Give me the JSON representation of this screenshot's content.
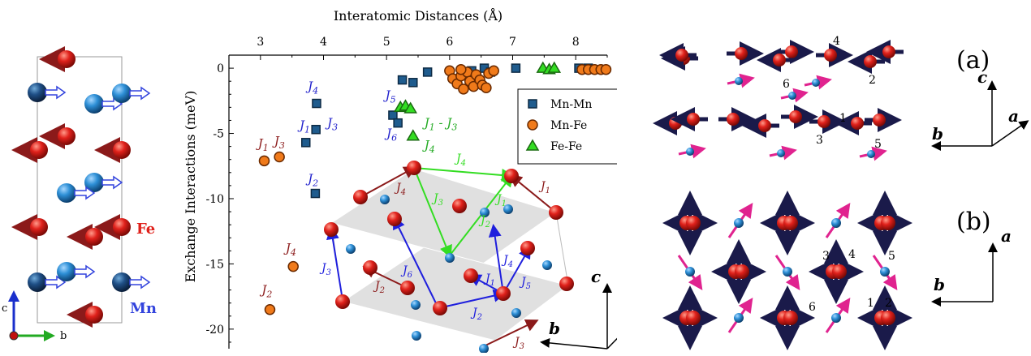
{
  "colors": {
    "fe": "#e0211b",
    "mn": "#1f4f86",
    "mn_light": "#2d8fd6",
    "mnmn_marker": "#1f5c8e",
    "mnfe_marker": "#f07a1a",
    "fefe_marker": "#33dd22",
    "arrow_blue": "#1f1fdd",
    "arrow_red": "#8b1a1a",
    "arrow_green": "#33dd22",
    "spin_dark": "#1a1a4a",
    "spin_pink": "#e0238f",
    "axis_c": "#1a2fcc",
    "axis_b": "#22aa22"
  },
  "left_panel": {
    "label_fe": "Fe",
    "label_mn": "Mn",
    "axis_c": "c",
    "axis_b": "b"
  },
  "chart_data": {
    "type": "scatter",
    "title": "",
    "xlabel_top": "Interatomic Distances (Å)",
    "ylabel": "Exchange Interactions (meV)",
    "xlim": [
      2.5,
      8.5
    ],
    "ylim": [
      -21.5,
      1
    ],
    "xticks": [
      3,
      4,
      5,
      6,
      7,
      8
    ],
    "yticks": [
      0,
      -5,
      -10,
      -15,
      -20
    ],
    "legend_position": "top-right",
    "series": [
      {
        "name": "Mn-Mn",
        "marker": "square",
        "points": [
          {
            "x": 3.72,
            "y": -5.7
          },
          {
            "x": 3.87,
            "y": -9.6
          },
          {
            "x": 3.88,
            "y": -4.7
          },
          {
            "x": 3.89,
            "y": -2.7
          },
          {
            "x": 5.1,
            "y": -3.6
          },
          {
            "x": 5.18,
            "y": -4.2
          },
          {
            "x": 5.25,
            "y": -0.9
          },
          {
            "x": 5.42,
            "y": -1.1
          },
          {
            "x": 5.65,
            "y": -0.3
          },
          {
            "x": 6.35,
            "y": -0.2
          },
          {
            "x": 6.55,
            "y": 0.0
          },
          {
            "x": 6.65,
            "y": -0.3
          },
          {
            "x": 7.05,
            "y": 0.0
          },
          {
            "x": 8.05,
            "y": 0.0
          },
          {
            "x": 8.2,
            "y": 0.0
          }
        ]
      },
      {
        "name": "Mn-Fe",
        "marker": "circle",
        "points": [
          {
            "x": 3.06,
            "y": -7.1
          },
          {
            "x": 3.3,
            "y": -6.8
          },
          {
            "x": 3.15,
            "y": -18.5
          },
          {
            "x": 3.52,
            "y": -15.2
          },
          {
            "x": 6.0,
            "y": -0.2
          },
          {
            "x": 6.05,
            "y": -0.8
          },
          {
            "x": 6.12,
            "y": -1.2
          },
          {
            "x": 6.18,
            "y": -0.6
          },
          {
            "x": 6.22,
            "y": -1.6
          },
          {
            "x": 6.28,
            "y": -0.3
          },
          {
            "x": 6.32,
            "y": -1.0
          },
          {
            "x": 6.38,
            "y": -1.4
          },
          {
            "x": 6.42,
            "y": -0.5
          },
          {
            "x": 6.48,
            "y": -0.9
          },
          {
            "x": 6.52,
            "y": -1.3
          },
          {
            "x": 6.58,
            "y": -1.5
          },
          {
            "x": 6.62,
            "y": -0.4
          },
          {
            "x": 6.7,
            "y": -0.2
          },
          {
            "x": 6.18,
            "y": -0.1
          },
          {
            "x": 8.1,
            "y": -0.1
          },
          {
            "x": 8.2,
            "y": -0.1
          },
          {
            "x": 8.3,
            "y": -0.1
          },
          {
            "x": 8.4,
            "y": -0.1
          },
          {
            "x": 8.48,
            "y": -0.1
          }
        ]
      },
      {
        "name": "Fe-Fe",
        "marker": "triangle",
        "points": [
          {
            "x": 5.22,
            "y": -3.0
          },
          {
            "x": 5.3,
            "y": -2.9
          },
          {
            "x": 5.38,
            "y": -3.1
          },
          {
            "x": 5.42,
            "y": -5.2
          },
          {
            "x": 7.48,
            "y": 0.0
          },
          {
            "x": 7.58,
            "y": -0.1
          },
          {
            "x": 7.66,
            "y": 0.0
          }
        ]
      }
    ],
    "annotations": [
      {
        "text": "J4",
        "x": 3.75,
        "y": -1.7,
        "color": "mn"
      },
      {
        "text": "J1",
        "x": 3.62,
        "y": -4.7,
        "color": "mn"
      },
      {
        "text": "J3",
        "x": 4.06,
        "y": -4.5,
        "color": "mn"
      },
      {
        "text": "J2",
        "x": 3.75,
        "y": -8.8,
        "color": "mn"
      },
      {
        "text": "J5",
        "x": 4.98,
        "y": -2.4,
        "color": "mn"
      },
      {
        "text": "J6",
        "x": 5.0,
        "y": -5.3,
        "color": "mn"
      },
      {
        "text": "J1 - J3",
        "x": 5.6,
        "y": -4.5,
        "color": "fefe"
      },
      {
        "text": "J4",
        "x": 5.6,
        "y": -6.2,
        "color": "fefe"
      },
      {
        "text": "J1",
        "x": 2.96,
        "y": -6.1,
        "color": "fe"
      },
      {
        "text": "J3",
        "x": 3.22,
        "y": -5.9,
        "color": "fe"
      },
      {
        "text": "J4",
        "x": 3.4,
        "y": -14.1,
        "color": "fe"
      },
      {
        "text": "J2",
        "x": 3.02,
        "y": -17.3,
        "color": "fe"
      }
    ]
  },
  "structure_inset": {
    "bond_labels": {
      "j4_top": "J4",
      "j4_left": "J4",
      "j1_right": "J1",
      "j3_green": "J3",
      "j1_green": "J1",
      "j2_green": "J2",
      "j3_blue": "J3",
      "j2_red": "J2",
      "j6": "J6",
      "j1_mid": "J1",
      "j4_mid": "J4",
      "j5": "J5",
      "j2_blue": "J2",
      "j3_red": "J3"
    },
    "axis_c": "c",
    "axis_a": "a",
    "axis_b": "b"
  },
  "panel_a": {
    "label": "(a)",
    "site_labels": [
      "4",
      "2",
      "6",
      "1",
      "3",
      "5"
    ],
    "axis_c": "c",
    "axis_a": "a",
    "axis_b": "b"
  },
  "panel_b": {
    "label": "(b)",
    "site_labels": [
      "3",
      "4",
      "5",
      "6",
      "1",
      "2"
    ],
    "axis_a": "a",
    "axis_b": "b"
  }
}
